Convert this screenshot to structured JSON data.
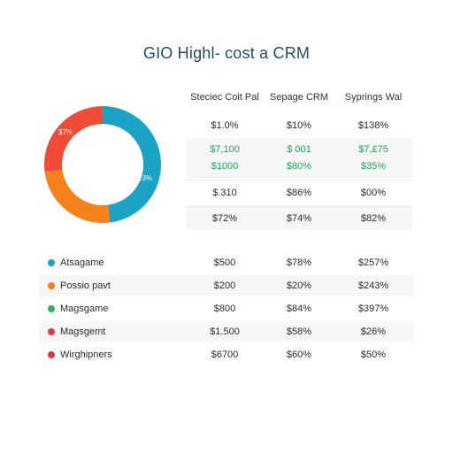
{
  "chart_data": [
    {
      "type": "pie",
      "title": "GIO Highl- cost a CRM",
      "slices": [
        {
          "label": "Atsagame",
          "value": 48,
          "color": "#1aa3c4"
        },
        {
          "label": "Possio pavt",
          "value": 25,
          "color": "#f7821b"
        },
        {
          "label": "Magsgame",
          "value": 27,
          "color": "#ef4b36"
        }
      ],
      "data_labels": [
        "$7%",
        "23%"
      ]
    },
    {
      "type": "table",
      "columns": [
        "Steciec Coit Pal",
        "Sepage CRM",
        "Syprings Wal"
      ],
      "rows": [
        {
          "values": [
            "$1.0%",
            "$10%",
            "$138%"
          ],
          "style": "plain"
        },
        {
          "values": [
            "$7,100",
            "$ 001",
            "$7,£75"
          ],
          "style": "green"
        },
        {
          "values": [
            "$1000",
            "$80%",
            "$35%"
          ],
          "style": "green"
        },
        {
          "values": [
            "$.310",
            "$86%",
            "$00%"
          ],
          "style": "plain"
        },
        {
          "values": [
            "$72%",
            "$74%",
            "$82%"
          ],
          "style": "plain"
        }
      ]
    }
  ],
  "legend": {
    "items": [
      {
        "label": "Atsagame",
        "color": "#1aa3c4",
        "values": [
          "$500",
          "$78%",
          "$257%"
        ]
      },
      {
        "label": "Possio pavt",
        "color": "#f7821b",
        "values": [
          "$200",
          "$20%",
          "$243%"
        ]
      },
      {
        "label": "Magsgame",
        "color": "#2fb35a",
        "values": [
          "$800",
          "$84%",
          "$397%"
        ]
      },
      {
        "label": "Magsgemt",
        "color": "#e53950",
        "values": [
          "$1.500",
          "$58%",
          "$26%"
        ]
      },
      {
        "label": "Wirghipners",
        "color": "#e0344f",
        "values": [
          "$6700",
          "$60%",
          "$50%"
        ]
      }
    ]
  }
}
